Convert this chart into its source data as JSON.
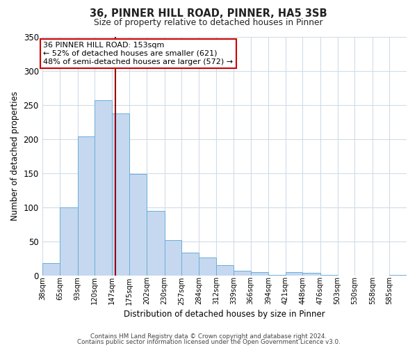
{
  "title": "36, PINNER HILL ROAD, PINNER, HA5 3SB",
  "subtitle": "Size of property relative to detached houses in Pinner",
  "xlabel": "Distribution of detached houses by size in Pinner",
  "ylabel": "Number of detached properties",
  "bar_labels": [
    "38sqm",
    "65sqm",
    "93sqm",
    "120sqm",
    "147sqm",
    "175sqm",
    "202sqm",
    "230sqm",
    "257sqm",
    "284sqm",
    "312sqm",
    "339sqm",
    "366sqm",
    "394sqm",
    "421sqm",
    "448sqm",
    "476sqm",
    "503sqm",
    "530sqm",
    "558sqm",
    "585sqm"
  ],
  "bar_values": [
    18,
    100,
    204,
    257,
    237,
    149,
    95,
    52,
    33,
    26,
    15,
    7,
    5,
    1,
    5,
    4,
    1,
    0,
    0,
    0,
    1
  ],
  "bar_color": "#c5d8f0",
  "bar_edgecolor": "#6baed6",
  "property_line_x": 153,
  "bin_edges_sqm": [
    38,
    65,
    93,
    120,
    147,
    175,
    202,
    230,
    257,
    284,
    312,
    339,
    366,
    394,
    421,
    448,
    476,
    503,
    530,
    558,
    585,
    612
  ],
  "ylim": [
    0,
    350
  ],
  "yticks": [
    0,
    50,
    100,
    150,
    200,
    250,
    300,
    350
  ],
  "annotation_line1": "36 PINNER HILL ROAD: 153sqm",
  "annotation_line2": "← 52% of detached houses are smaller (621)",
  "annotation_line3": "48% of semi-detached houses are larger (572) →",
  "annotation_box_color": "#ffffff",
  "annotation_box_edgecolor": "#cc0000",
  "red_line_color": "#990000",
  "footer_line1": "Contains HM Land Registry data © Crown copyright and database right 2024.",
  "footer_line2": "Contains public sector information licensed under the Open Government Licence v3.0.",
  "background_color": "#ffffff",
  "grid_color": "#d0dce8"
}
